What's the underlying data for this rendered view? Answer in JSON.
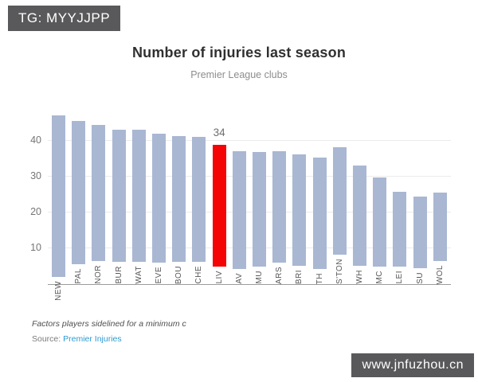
{
  "watermarks": {
    "top_left": "TG: MYYJJPP",
    "bottom_right": "www.jnfuzhou.cn"
  },
  "header": {
    "title": "Number of injuries last season",
    "subtitle": "Premier League clubs"
  },
  "chart_data": {
    "type": "bar",
    "title": "Number of injuries last season",
    "subtitle": "Premier League clubs",
    "categories": [
      "NEW",
      "PAL",
      "NOR",
      "BUR",
      "WAT",
      "EVE",
      "BOU",
      "CHE",
      "LIV",
      "AV",
      "MU",
      "ARS",
      "BRI",
      "TH",
      "S'TON",
      "WH",
      "MC",
      "LEI",
      "SU",
      "WOL"
    ],
    "values": [
      45,
      40,
      38,
      37,
      37,
      36,
      35,
      35,
      34,
      33,
      32,
      31,
      31,
      31,
      30,
      28,
      25,
      21,
      20,
      19
    ],
    "highlight": {
      "category": "LIV",
      "label": "34"
    },
    "y_ticks": [
      10,
      20,
      30,
      40
    ],
    "ylim": [
      0,
      47
    ],
    "grid": true,
    "legend": "none",
    "xlabel": "",
    "ylabel": ""
  },
  "footer": {
    "note": "Factors players sidelined for a minimum c",
    "source_label": "Source:",
    "source_link": "Premier Injuries"
  },
  "colors": {
    "bar": "#a9b7d2",
    "highlight": "#f40404",
    "link": "#2e9ad2",
    "badge_bg": "#59595b",
    "gridline": "#ebebeb",
    "axis_line": "#9b9b9b"
  }
}
